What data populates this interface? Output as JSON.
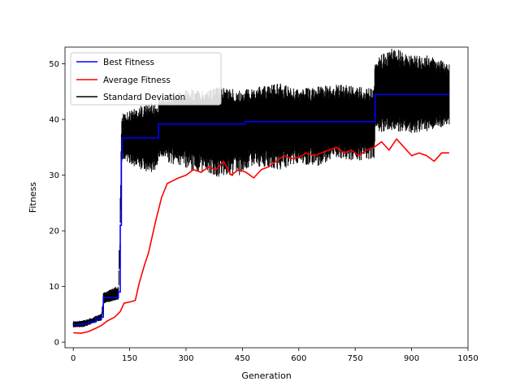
{
  "chart_data": {
    "type": "line",
    "title": "",
    "xlabel": "Generation",
    "ylabel": "Fitness",
    "xlim": [
      -22,
      1050
    ],
    "ylim": [
      -1,
      53
    ],
    "xticks": [
      0,
      150,
      300,
      450,
      600,
      750,
      900,
      1050
    ],
    "yticks": [
      0,
      10,
      20,
      30,
      40,
      50
    ],
    "grid": false,
    "legend_position": "upper-left",
    "series": [
      {
        "name": "Best Fitness",
        "color": "#0000ff",
        "style": "step",
        "x": [
          0,
          25,
          40,
          60,
          75,
          80,
          120,
          125,
          128,
          130,
          225,
          227,
          455,
          457,
          800,
          803,
          1000
        ],
        "y": [
          3.2,
          3.3,
          3.6,
          4.2,
          4.5,
          8.0,
          9.0,
          21.0,
          33.0,
          36.7,
          36.7,
          39.2,
          39.2,
          39.6,
          39.6,
          44.5,
          44.5
        ]
      },
      {
        "name": "Average Fitness",
        "color": "#ff0000",
        "style": "line",
        "x": [
          0,
          20,
          40,
          60,
          75,
          90,
          110,
          125,
          135,
          155,
          165,
          175,
          190,
          200,
          210,
          220,
          235,
          250,
          265,
          280,
          300,
          320,
          340,
          360,
          380,
          400,
          420,
          440,
          460,
          480,
          500,
          520,
          540,
          560,
          580,
          600,
          620,
          640,
          660,
          680,
          700,
          720,
          740,
          760,
          780,
          800,
          820,
          840,
          860,
          880,
          900,
          920,
          940,
          960,
          980,
          1000
        ],
        "y": [
          1.7,
          1.6,
          1.9,
          2.5,
          3.0,
          3.8,
          4.5,
          5.5,
          7.0,
          7.3,
          7.5,
          10.5,
          14.0,
          16.0,
          19.0,
          22.0,
          26.0,
          28.5,
          29.0,
          29.5,
          30.0,
          31.0,
          30.5,
          31.5,
          31.0,
          32.5,
          30.0,
          31.0,
          30.5,
          29.5,
          31.0,
          31.5,
          32.5,
          33.5,
          33.0,
          33.2,
          34.0,
          33.5,
          34.0,
          34.5,
          35.0,
          34.0,
          34.5,
          33.5,
          34.5,
          35.0,
          36.0,
          34.5,
          36.5,
          35.0,
          33.5,
          34.0,
          33.5,
          32.5,
          34.0,
          34.0
        ]
      },
      {
        "name": "Standard Deviation",
        "color": "#000000",
        "style": "band",
        "x": [
          0,
          25,
          40,
          60,
          75,
          80,
          115,
          120,
          125,
          128,
          130,
          160,
          200,
          215,
          225,
          227,
          300,
          350,
          400,
          455,
          457,
          500,
          550,
          600,
          650,
          700,
          750,
          800,
          803,
          850,
          900,
          950,
          1000
        ],
        "lower": [
          2.6,
          2.7,
          3.0,
          3.6,
          3.9,
          6.9,
          7.6,
          7.6,
          21.5,
          31.5,
          33.0,
          31.5,
          30.5,
          30.5,
          31.5,
          33.0,
          31.0,
          30.0,
          29.5,
          30.0,
          31.0,
          31.5,
          31.0,
          32.0,
          31.5,
          33.0,
          32.5,
          33.0,
          37.5,
          38.0,
          37.5,
          38.0,
          39.0
        ],
        "upper": [
          3.8,
          3.9,
          4.2,
          4.8,
          5.1,
          8.9,
          10.0,
          10.0,
          26.5,
          40.0,
          41.0,
          42.0,
          43.0,
          43.0,
          42.5,
          44.0,
          45.5,
          45.5,
          46.0,
          45.0,
          45.5,
          46.0,
          46.5,
          45.5,
          46.0,
          46.5,
          46.0,
          45.5,
          51.0,
          53.0,
          51.5,
          51.5,
          50.0
        ]
      }
    ]
  }
}
